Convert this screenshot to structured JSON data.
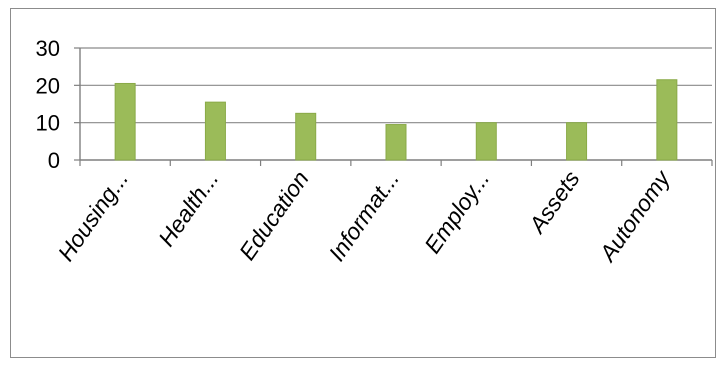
{
  "chart_data": {
    "type": "bar",
    "categories": [
      "Housing...",
      "Health...",
      "Education",
      "Informat...",
      "Employ...",
      "Assets",
      "Autonomy"
    ],
    "values": [
      20.5,
      15.5,
      12.5,
      9.5,
      10,
      10,
      21.5
    ],
    "title": "",
    "xlabel": "",
    "ylabel": "",
    "ylim": [
      0,
      30
    ],
    "yticks": [
      0,
      10,
      20,
      30
    ],
    "grid": true,
    "legend": "none",
    "bar_color": "#9bbb59",
    "bar_edge_color": "#8aaa48",
    "grid_color": "#8a8a8a"
  }
}
